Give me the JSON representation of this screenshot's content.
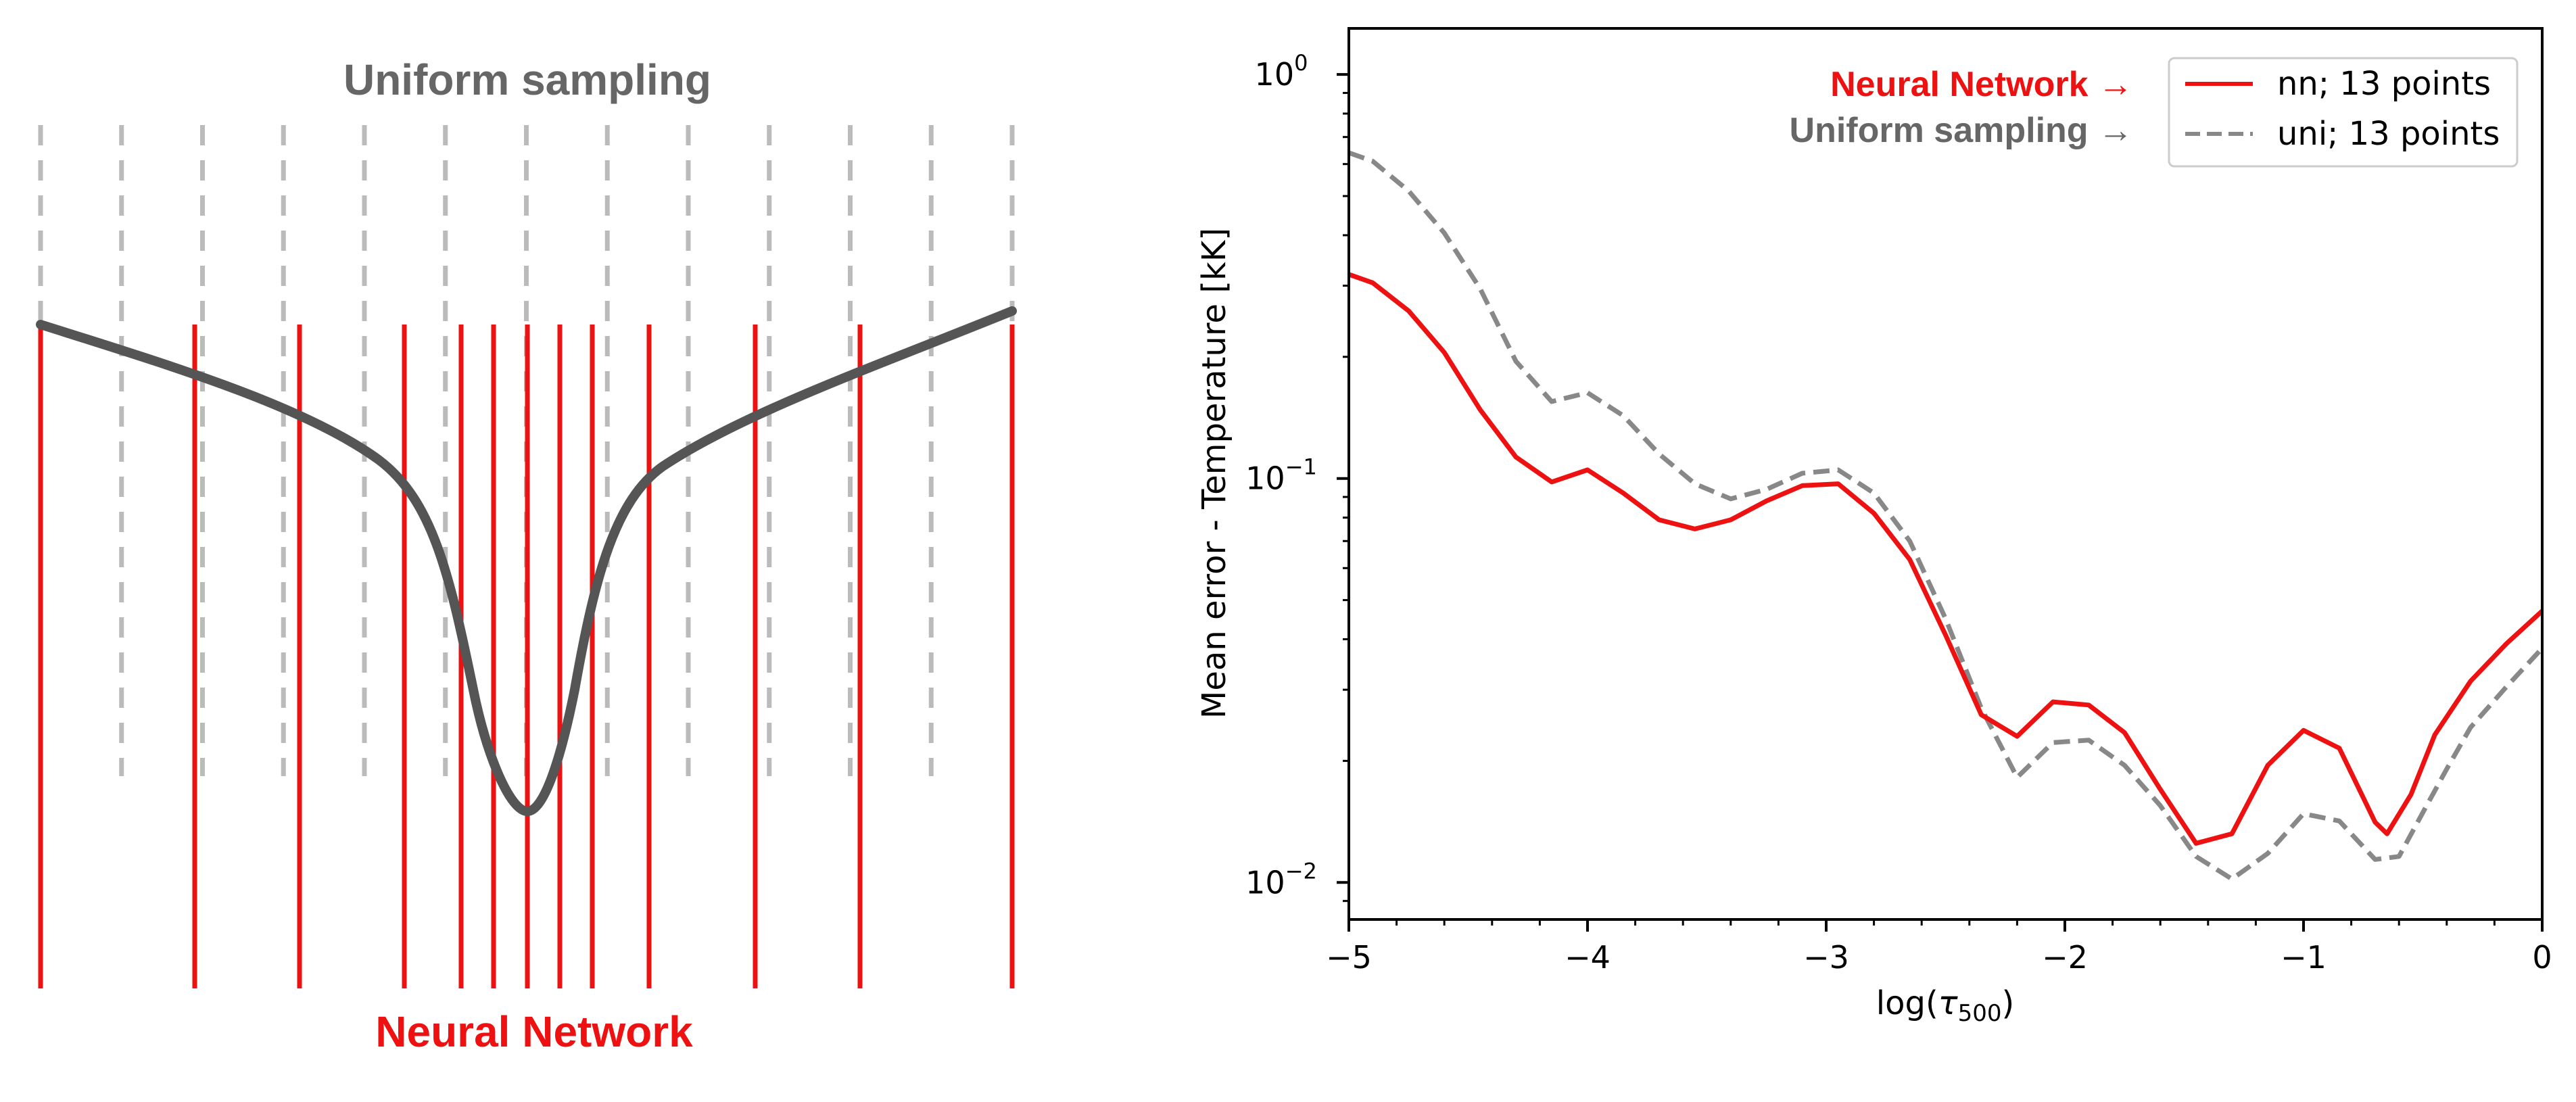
{
  "left_panel": {
    "top_label": "Uniform sampling",
    "bottom_label": "Neural Network",
    "top_label_color": "#666666",
    "bottom_label_color": "#ee1111",
    "uniform_line_color": "#bbbbbb",
    "nn_line_color": "#ee1111",
    "curve_color": "#555555"
  },
  "chart_data": [
    {
      "type": "line",
      "title": "",
      "xlabel_main": "log(",
      "xlabel_symbol": "τ",
      "xlabel_sub": "500",
      "xlabel_close": ")",
      "ylabel": "Mean  error - Temperature [kK]",
      "xlim": [
        -5,
        0
      ],
      "ylim": [
        0.0081,
        1.3
      ],
      "yscale": "log",
      "grid": false,
      "legend_placement": "top-right",
      "x_ticks": [
        {
          "value": -5,
          "label": "−5"
        },
        {
          "value": -4,
          "label": "−4"
        },
        {
          "value": -3,
          "label": "−3"
        },
        {
          "value": -2,
          "label": "−2"
        },
        {
          "value": -1,
          "label": "−1"
        },
        {
          "value": 0,
          "label": "0"
        }
      ],
      "y_ticks": [
        {
          "value": 1,
          "base": "10",
          "exp": "0"
        },
        {
          "value": 0.1,
          "base": "10",
          "exp": "−1"
        },
        {
          "value": 0.01,
          "base": "10",
          "exp": "−2"
        }
      ],
      "annotations": [
        {
          "text": "Neural Network →",
          "color": "#ee1111"
        },
        {
          "text": "Uniform sampling →",
          "color": "#666666"
        }
      ],
      "series": [
        {
          "name": "nn; 13 points",
          "color": "#ee1111",
          "dash": "solid",
          "x": [
            -5.0,
            -4.9,
            -4.75,
            -4.6,
            -4.45,
            -4.3,
            -4.15,
            -4.0,
            -3.85,
            -3.7,
            -3.55,
            -3.4,
            -3.25,
            -3.1,
            -2.95,
            -2.8,
            -2.65,
            -2.5,
            -2.35,
            -2.2,
            -2.05,
            -1.9,
            -1.75,
            -1.6,
            -1.45,
            -1.3,
            -1.15,
            -1.0,
            -0.85,
            -0.7,
            -0.65,
            -0.55,
            -0.45,
            -0.3,
            -0.15,
            0.0
          ],
          "y": [
            0.32,
            0.305,
            0.26,
            0.205,
            0.148,
            0.113,
            0.098,
            0.105,
            0.092,
            0.079,
            0.075,
            0.079,
            0.088,
            0.096,
            0.097,
            0.082,
            0.063,
            0.041,
            0.026,
            0.023,
            0.028,
            0.0275,
            0.0235,
            0.017,
            0.0125,
            0.0132,
            0.0195,
            0.0238,
            0.0215,
            0.0141,
            0.0132,
            0.0165,
            0.0232,
            0.0315,
            0.039,
            0.047
          ]
        },
        {
          "name": "uni; 13 points",
          "color": "#888888",
          "dash": "dashed",
          "x": [
            -5.0,
            -4.9,
            -4.75,
            -4.6,
            -4.45,
            -4.3,
            -4.15,
            -4.0,
            -3.85,
            -3.7,
            -3.55,
            -3.4,
            -3.25,
            -3.1,
            -2.95,
            -2.8,
            -2.65,
            -2.5,
            -2.35,
            -2.2,
            -2.05,
            -1.9,
            -1.75,
            -1.6,
            -1.45,
            -1.3,
            -1.15,
            -1.0,
            -0.85,
            -0.7,
            -0.6,
            -0.5,
            -0.4,
            -0.3,
            -0.15,
            0.0
          ],
          "y": [
            0.64,
            0.61,
            0.515,
            0.405,
            0.295,
            0.195,
            0.155,
            0.163,
            0.143,
            0.115,
            0.097,
            0.089,
            0.094,
            0.103,
            0.105,
            0.092,
            0.07,
            0.045,
            0.027,
            0.0182,
            0.0222,
            0.0225,
            0.0195,
            0.0155,
            0.0116,
            0.0102,
            0.0118,
            0.0148,
            0.0142,
            0.0114,
            0.0116,
            0.0149,
            0.0191,
            0.0242,
            0.0305,
            0.038
          ]
        }
      ]
    }
  ]
}
